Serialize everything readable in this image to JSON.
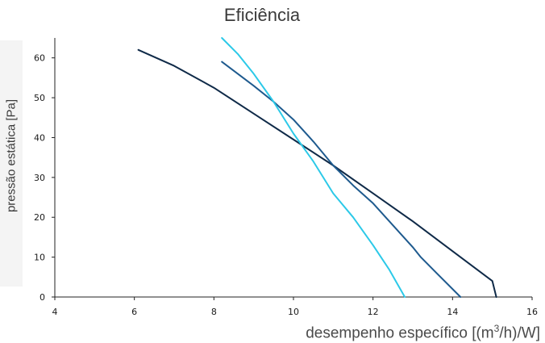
{
  "chart_data": {
    "type": "line",
    "title": "Eficiência",
    "xlabel_prefix": "desempenho específico [(m",
    "xlabel_sup": "3",
    "xlabel_suffix": "/h)/W]",
    "ylabel": "pressão estática [Pa]",
    "xlim": [
      4,
      16
    ],
    "ylim": [
      0,
      65
    ],
    "x_ticks": [
      4,
      6,
      8,
      10,
      12,
      14,
      16
    ],
    "y_ticks": [
      0,
      10,
      20,
      30,
      40,
      50,
      60
    ],
    "grid": false,
    "series": [
      {
        "color": "#0f2a48",
        "points": [
          [
            6.1,
            62
          ],
          [
            7.0,
            58
          ],
          [
            8.0,
            52.5
          ],
          [
            9.0,
            46
          ],
          [
            10.0,
            39.5
          ],
          [
            11.0,
            33
          ],
          [
            12.0,
            26
          ],
          [
            13.0,
            19
          ],
          [
            14.0,
            11.5
          ],
          [
            15.0,
            4
          ],
          [
            15.1,
            0
          ]
        ]
      },
      {
        "color": "#1e5a8e",
        "points": [
          [
            8.2,
            59
          ],
          [
            9.0,
            53
          ],
          [
            9.5,
            49
          ],
          [
            10.0,
            44.5
          ],
          [
            10.5,
            39
          ],
          [
            11.0,
            33
          ],
          [
            11.5,
            28
          ],
          [
            12.0,
            23.5
          ],
          [
            12.5,
            18
          ],
          [
            13.0,
            12.5
          ],
          [
            13.2,
            10
          ],
          [
            13.6,
            6
          ],
          [
            14.2,
            0
          ]
        ]
      },
      {
        "color": "#2cc9e8",
        "points": [
          [
            8.2,
            65
          ],
          [
            8.6,
            61
          ],
          [
            9.0,
            56
          ],
          [
            9.5,
            49
          ],
          [
            10.0,
            41
          ],
          [
            10.5,
            34
          ],
          [
            11.0,
            26
          ],
          [
            11.5,
            20
          ],
          [
            12.0,
            13
          ],
          [
            12.4,
            7
          ],
          [
            12.8,
            0
          ]
        ]
      }
    ]
  }
}
